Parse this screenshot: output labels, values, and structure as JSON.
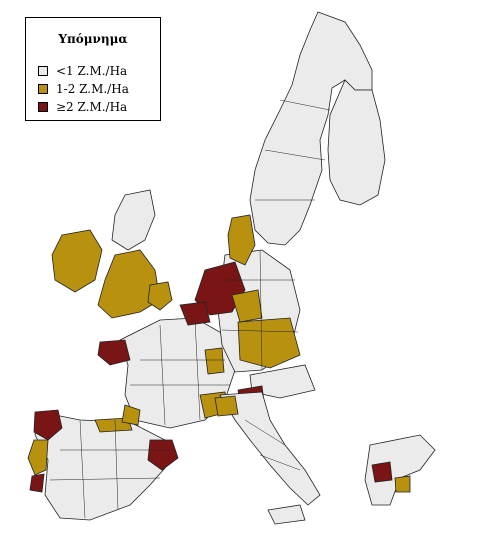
{
  "legend": {
    "title": "Υπόμνημα",
    "items": [
      {
        "label": "<1 Z.M./Ha",
        "color": "#ebebeb"
      },
      {
        "label": "1-2 Z.M./Ha",
        "color": "#b8920f"
      },
      {
        "label": "≥2 Z.M./Ha",
        "color": "#7a1515"
      }
    ]
  },
  "colors": {
    "low": "#ebebeb",
    "medium": "#b8920f",
    "high": "#7a1515",
    "border": "#222222",
    "background": "#ffffff"
  }
}
